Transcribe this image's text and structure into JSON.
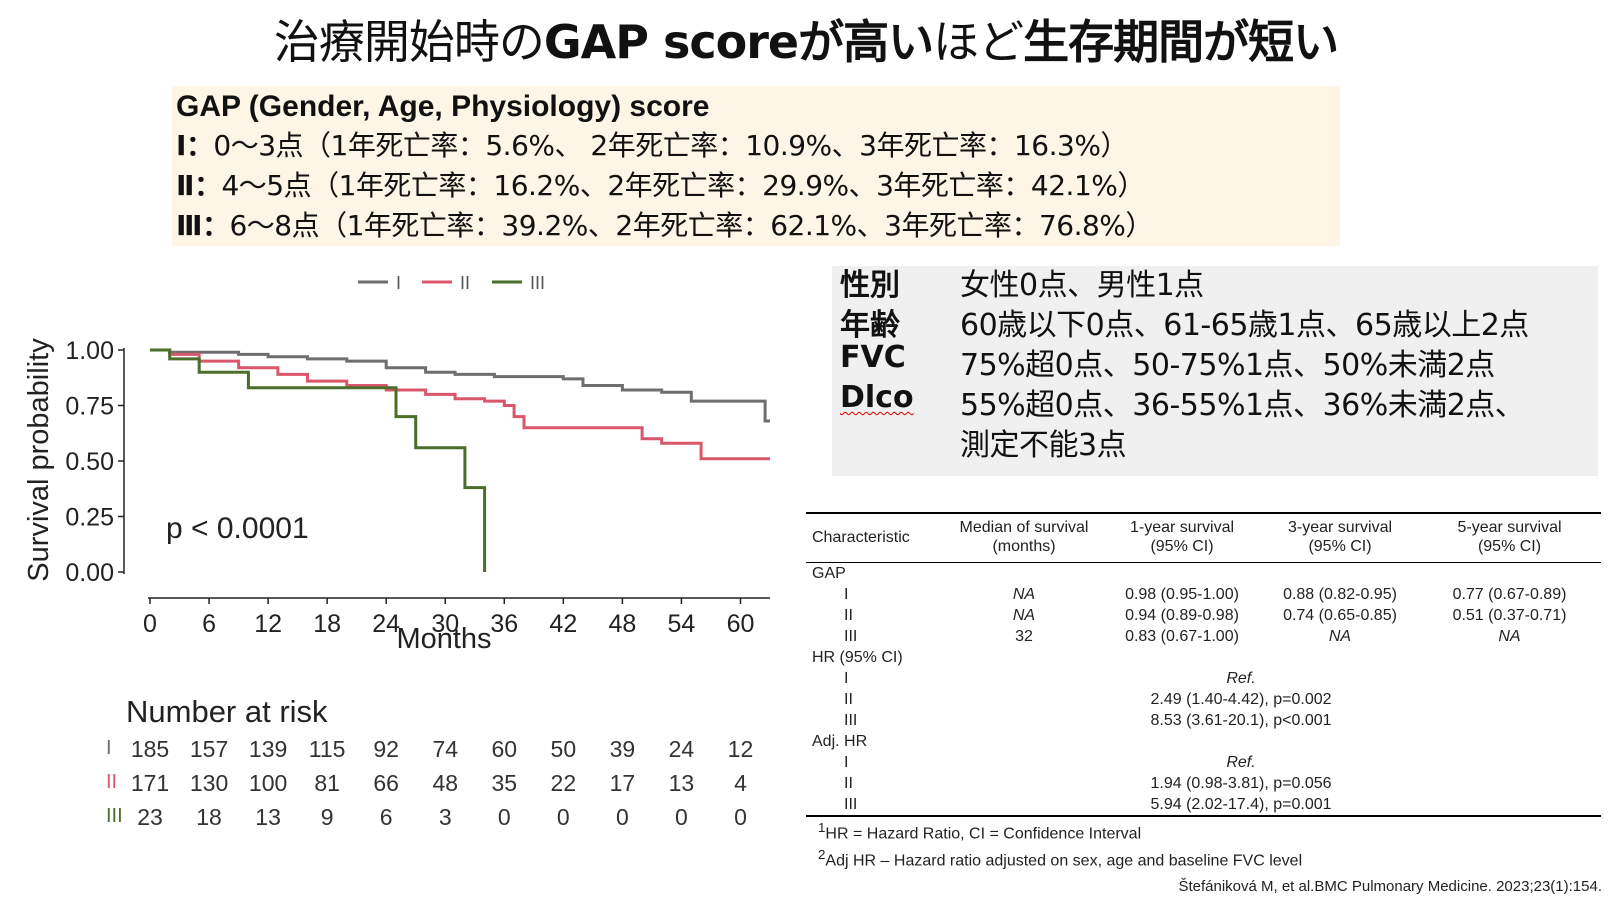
{
  "title": {
    "part1": "治療開始時の",
    "part2": "GAP score",
    "part3": "が高い",
    "part4": "ほど",
    "part5": "生存期間が短い"
  },
  "gap_box": {
    "heading": "GAP (Gender, Age, Physiology) score",
    "rows": [
      {
        "stage": "Ⅰ：",
        "text": "0〜3点（1年死亡率：5.6%、 2年死亡率：10.9%、3年死亡率：16.3%）"
      },
      {
        "stage": "Ⅱ：",
        "text": "4〜5点（1年死亡率：16.2%、2年死亡率：29.9%、3年死亡率：42.1%）"
      },
      {
        "stage": "Ⅲ：",
        "text": "6〜8点（1年死亡率：39.2%、2年死亡率：62.1%、3年死亡率：76.8%）"
      }
    ]
  },
  "criteria": [
    {
      "key": "性別",
      "value": "女性0点、男性1点"
    },
    {
      "key": "年齢",
      "value": "60歳以下0点、61-65歳1点、65歳以上2点"
    },
    {
      "key": "FVC",
      "value": "75%超0点、50-75%1点、50%未満2点"
    },
    {
      "key": "Dlco",
      "value": "55%超0点、36-55%1点、36%未満2点、"
    },
    {
      "key": "",
      "value": "測定不能3点"
    }
  ],
  "chart_data": {
    "type": "line",
    "subtype": "kaplan-meier step",
    "xlabel": "Months",
    "ylabel": "Survival probability",
    "xlim": [
      0,
      63
    ],
    "ylim": [
      0,
      1
    ],
    "xticks": [
      0,
      6,
      12,
      18,
      24,
      30,
      36,
      42,
      48,
      54,
      60
    ],
    "yticks": [
      "0.00",
      "0.25",
      "0.50",
      "0.75",
      "1.00"
    ],
    "legend_position": "top",
    "annotation": "p < 0.0001",
    "series": [
      {
        "name": "I",
        "color": "#6e6e6e",
        "x": [
          0,
          2,
          5,
          9,
          12,
          16,
          20,
          24,
          28,
          31,
          35,
          38,
          42,
          44,
          48,
          52,
          55,
          60,
          62.5,
          63
        ],
        "y": [
          1.0,
          0.99,
          0.99,
          0.98,
          0.97,
          0.96,
          0.95,
          0.92,
          0.9,
          0.89,
          0.88,
          0.88,
          0.87,
          0.84,
          0.82,
          0.81,
          0.77,
          0.77,
          0.68,
          0.68
        ]
      },
      {
        "name": "II",
        "color": "#d9576a",
        "x": [
          0,
          2,
          5,
          9,
          13,
          16,
          20,
          24,
          28,
          31,
          34,
          36,
          37,
          38,
          42,
          50,
          52,
          56,
          63
        ],
        "y": [
          1.0,
          0.98,
          0.95,
          0.92,
          0.89,
          0.86,
          0.84,
          0.82,
          0.8,
          0.78,
          0.77,
          0.75,
          0.7,
          0.65,
          0.65,
          0.6,
          0.58,
          0.51,
          0.51
        ]
      },
      {
        "name": "III",
        "color": "#4b6e2a",
        "x": [
          0,
          2,
          5,
          10,
          20,
          25,
          27,
          32,
          33.5,
          34
        ],
        "y": [
          1.0,
          0.96,
          0.9,
          0.83,
          0.83,
          0.7,
          0.56,
          0.38,
          0.38,
          0.0
        ]
      }
    ]
  },
  "risk_table": {
    "title": "Number at risk",
    "times": [
      0,
      6,
      12,
      18,
      24,
      30,
      36,
      42,
      48,
      54,
      60
    ],
    "rows": [
      {
        "label": "I",
        "color": "#6e6e6e",
        "values": [
          "185",
          "157",
          "139",
          "115",
          "92",
          "74",
          "60",
          "50",
          "39",
          "24",
          "12"
        ]
      },
      {
        "label": "II",
        "color": "#d9576a",
        "values": [
          "171",
          "130",
          "100",
          "81",
          "66",
          "48",
          "35",
          "22",
          "17",
          "13",
          "4"
        ]
      },
      {
        "label": "III",
        "color": "#4b6e2a",
        "values": [
          "23",
          "18",
          "13",
          "9",
          "6",
          "3",
          "0",
          "0",
          "0",
          "0",
          "0"
        ]
      }
    ]
  },
  "survival_table": {
    "headers": [
      "Characteristic",
      "Median of survival\n(months)",
      "1-year survival\n(95% CI)",
      "3-year survival\n(95% CI)",
      "5-year survival\n(95% CI)"
    ],
    "gap_label": "GAP",
    "gap_rows": [
      {
        "label": "I",
        "median": "NA",
        "y1": "0.98 (0.95-1.00)",
        "y3": "0.88 (0.82-0.95)",
        "y5": "0.77 (0.67-0.89)"
      },
      {
        "label": "II",
        "median": "NA",
        "y1": "0.94 (0.89-0.98)",
        "y3": "0.74 (0.65-0.85)",
        "y5": "0.51 (0.37-0.71)"
      },
      {
        "label": "III",
        "median": "32",
        "y1": "0.83 (0.67-1.00)",
        "y3": "NA",
        "y5": "NA"
      }
    ],
    "hr_label": "HR (95% CI)",
    "hr_rows": [
      {
        "label": "I",
        "value": "Ref."
      },
      {
        "label": "II",
        "value": "2.49 (1.40-4.42), p=0.002"
      },
      {
        "label": "III",
        "value": "8.53 (3.61-20.1), p<0.001"
      }
    ],
    "adj_label": "Adj. HR",
    "adj_rows": [
      {
        "label": "I",
        "value": "Ref."
      },
      {
        "label": "II",
        "value": "1.94 (0.98-3.81), p=0.056"
      },
      {
        "label": "III",
        "value": "5.94 (2.02-17.4), p=0.001"
      }
    ],
    "footnote1": "HR = Hazard Ratio, CI = Confidence Interval",
    "footnote1_sup": "1",
    "footnote2": "Adj HR – Hazard ratio adjusted on sex, age and baseline FVC level",
    "footnote2_sup": "2"
  },
  "citation": "Štefániková M, et al.BMC Pulmonary Medicine. 2023;23(1):154."
}
